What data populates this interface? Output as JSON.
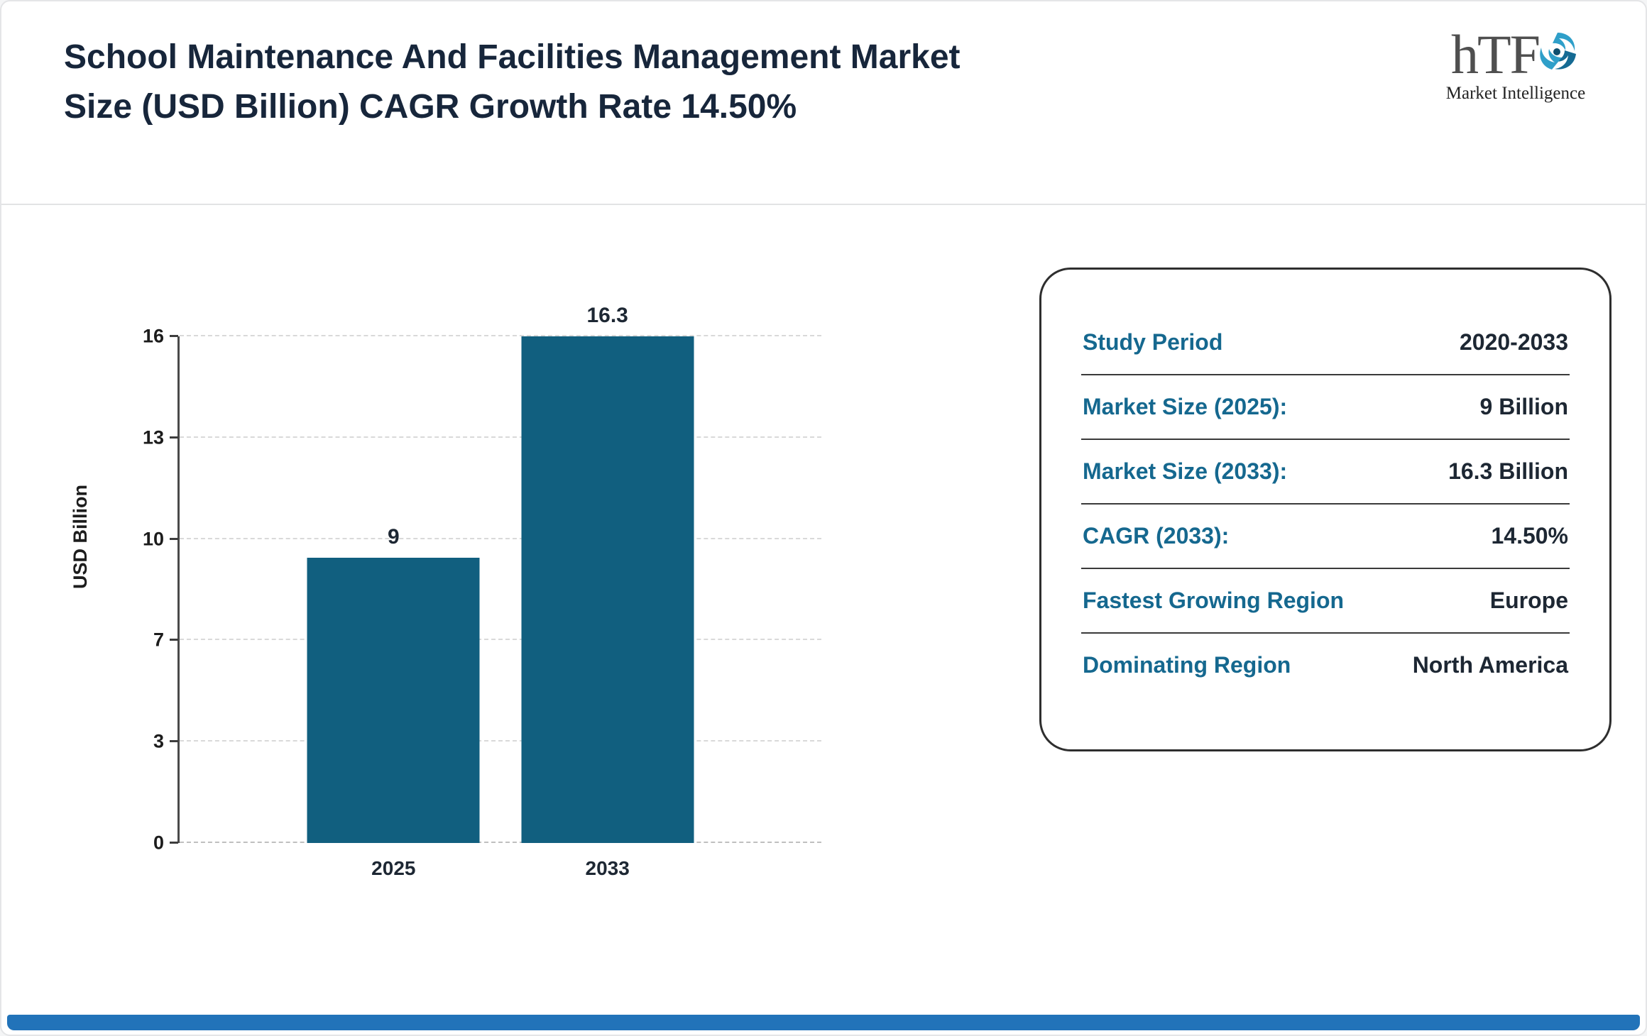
{
  "header": {
    "title": "School Maintenance And Facilities Management Market Size (USD Billion) CAGR Growth Rate 14.50%",
    "logo": {
      "text": "hTF",
      "subtext": "Market Intelligence"
    }
  },
  "chart_data": {
    "type": "bar",
    "categories": [
      "2025",
      "2033"
    ],
    "values": [
      9,
      16.3
    ],
    "bar_labels": [
      "9",
      "16.3"
    ],
    "title": "",
    "xlabel": "",
    "ylabel": "USD Billion",
    "ylim": [
      0,
      16
    ],
    "ytick_labels": [
      "0",
      "3",
      "7",
      "10",
      "13",
      "16"
    ],
    "grid": "horizontal-dashed",
    "legend": "none",
    "bar_color": "#115f7f"
  },
  "info_panel": {
    "rows": [
      {
        "label": "Study Period",
        "value": "2020-2033"
      },
      {
        "label": "Market Size (2025):",
        "value": "9 Billion"
      },
      {
        "label": "Market Size (2033):",
        "value": "16.3 Billion"
      },
      {
        "label": "CAGR (2033):",
        "value": "14.50%"
      },
      {
        "label": "Fastest Growing Region",
        "value": "Europe"
      },
      {
        "label": "Dominating Region",
        "value": "North America"
      }
    ],
    "label_color": "#15688f",
    "value_color": "#1d2733"
  },
  "colors": {
    "title_text": "#17263b",
    "bar": "#115f7f",
    "footer_bar": "#2273b9",
    "logo_swirl_light": "#2f9fc9",
    "logo_swirl_dark": "#156a93"
  }
}
